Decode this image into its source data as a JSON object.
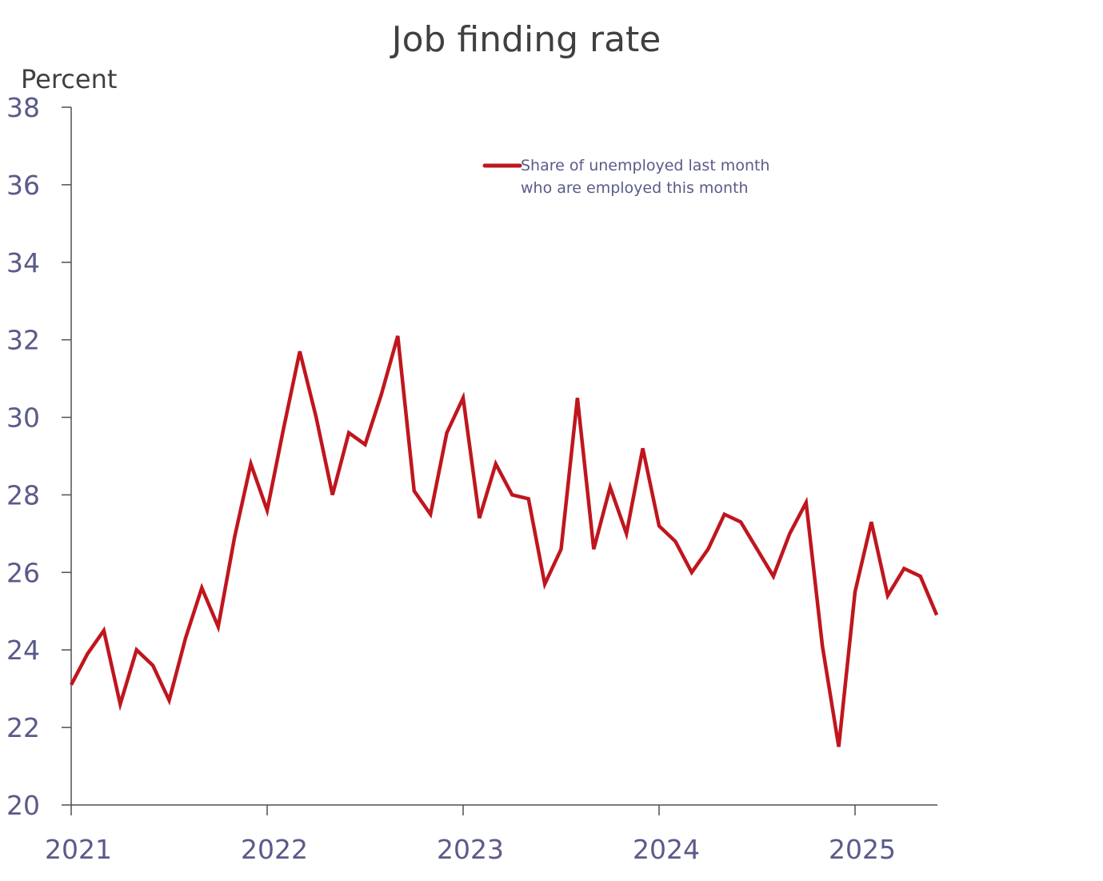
{
  "chart_data": {
    "type": "line",
    "title": "Job finding rate",
    "ylabel": "Percent",
    "xlabel": "",
    "ylim": [
      20,
      38
    ],
    "yticks": [
      20,
      22,
      24,
      26,
      28,
      30,
      32,
      34,
      36,
      38
    ],
    "xticks": [
      "2021",
      "2022",
      "2023",
      "2024",
      "2025"
    ],
    "grid": false,
    "legend_position": "top-center",
    "series": [
      {
        "name": "Share of unemployed last month who are employed this month",
        "legend_lines": [
          "Share of unemployed last month",
          "who are employed this month"
        ],
        "color": "#c0161e",
        "start": "2021-01",
        "frequency": "monthly",
        "x": [
          "2021-01",
          "2021-02",
          "2021-03",
          "2021-04",
          "2021-05",
          "2021-06",
          "2021-07",
          "2021-08",
          "2021-09",
          "2021-10",
          "2021-11",
          "2021-12",
          "2022-01",
          "2022-02",
          "2022-03",
          "2022-04",
          "2022-05",
          "2022-06",
          "2022-07",
          "2022-08",
          "2022-09",
          "2022-10",
          "2022-11",
          "2022-12",
          "2023-01",
          "2023-02",
          "2023-03",
          "2023-04",
          "2023-05",
          "2023-06",
          "2023-07",
          "2023-08",
          "2023-09",
          "2023-10",
          "2023-11",
          "2023-12",
          "2024-01",
          "2024-02",
          "2024-03",
          "2024-04",
          "2024-05",
          "2024-06",
          "2024-07",
          "2024-08",
          "2024-09",
          "2024-10",
          "2024-11",
          "2024-12",
          "2025-01",
          "2025-02",
          "2025-03",
          "2025-04",
          "2025-05",
          "2025-06"
        ],
        "values": [
          23.1,
          23.9,
          24.5,
          22.6,
          24.0,
          23.6,
          22.7,
          24.3,
          25.6,
          24.6,
          26.9,
          28.8,
          27.6,
          29.7,
          31.7,
          30.0,
          28.0,
          29.6,
          29.3,
          30.6,
          32.1,
          28.1,
          27.5,
          29.6,
          30.5,
          27.4,
          28.8,
          28.0,
          27.9,
          25.7,
          26.6,
          30.5,
          26.6,
          28.2,
          27.0,
          29.2,
          27.2,
          26.8,
          26.0,
          26.6,
          27.5,
          27.3,
          26.6,
          25.9,
          27.0,
          27.8,
          24.1,
          21.5,
          25.5,
          27.3,
          25.4,
          26.1,
          25.9,
          24.9
        ]
      }
    ]
  }
}
